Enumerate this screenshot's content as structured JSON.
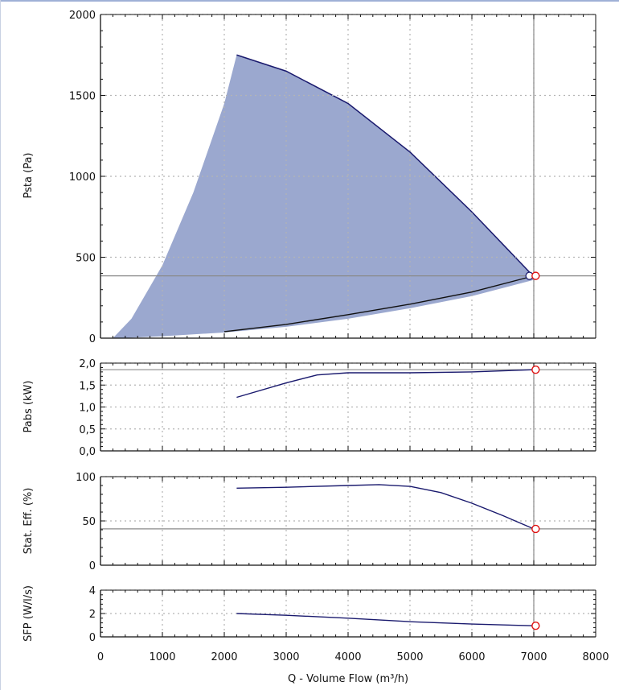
{
  "chart_data": {
    "type": "line",
    "shared_x": {
      "label": "Q - Volume Flow (m³/h)",
      "range": [
        0,
        8000
      ],
      "ticks": [
        0,
        1000,
        2000,
        3000,
        4000,
        5000,
        6000,
        7000,
        8000
      ],
      "tick_labels": [
        "0",
        "1000",
        "2000",
        "3000",
        "4000",
        "5000",
        "6000",
        "7000",
        "8000"
      ]
    },
    "operating_point": {
      "x": 7030,
      "x_line": 7000
    },
    "panels": [
      {
        "key": "psta",
        "ylabel": "Psta (Pa)",
        "ylim": [
          0,
          2000
        ],
        "yticks": [
          0,
          500,
          1000,
          1500,
          2000
        ],
        "ytick_labels": [
          "0",
          "500",
          "1000",
          "1500",
          "2000"
        ],
        "fill_color": "#9ba8cf",
        "range_upper": {
          "x": [
            200,
            500,
            1000,
            1500,
            2000,
            2200,
            3000,
            4000,
            5000,
            6000,
            7000
          ],
          "y": [
            0,
            120,
            450,
            900,
            1450,
            1750,
            1650,
            1450,
            1150,
            780,
            380
          ]
        },
        "range_lower": {
          "x": [
            7000,
            6000,
            5000,
            4000,
            3000,
            2000,
            1000,
            500,
            200
          ],
          "y": [
            360,
            260,
            185,
            120,
            70,
            35,
            12,
            3,
            0
          ]
        },
        "system_curve": {
          "x": [
            2000,
            3000,
            4000,
            5000,
            6000,
            6950
          ],
          "y": [
            40,
            85,
            145,
            210,
            285,
            380
          ]
        },
        "reference_y": 385,
        "marker": {
          "x": 7030,
          "y": 385
        },
        "marker_blue": {
          "x": 6930,
          "y": 385
        }
      },
      {
        "key": "pabs",
        "ylabel": "Pabs (kW)",
        "ylim": [
          0,
          2
        ],
        "yticks": [
          0,
          0.5,
          1,
          1.5,
          2
        ],
        "ytick_labels": [
          "0,0",
          "0,5",
          "1,0",
          "1,5",
          "2,0"
        ],
        "curve": {
          "x": [
            2200,
            3000,
            3500,
            4000,
            5000,
            6000,
            7000
          ],
          "y": [
            1.22,
            1.55,
            1.73,
            1.78,
            1.78,
            1.8,
            1.85
          ]
        },
        "reference_y": 1.85,
        "marker": {
          "x": 7030,
          "y": 1.85
        }
      },
      {
        "key": "eff",
        "ylabel": "Stat. Eff. (%)",
        "ylim": [
          0,
          100
        ],
        "yticks": [
          0,
          50,
          100
        ],
        "ytick_labels": [
          "0",
          "50",
          "100"
        ],
        "curve": {
          "x": [
            2200,
            3000,
            4000,
            4500,
            5000,
            5500,
            6000,
            6500,
            7000
          ],
          "y": [
            87,
            88,
            90,
            91,
            89,
            82,
            70,
            56,
            41
          ]
        },
        "reference_y": 41,
        "marker": {
          "x": 7030,
          "y": 41
        }
      },
      {
        "key": "sfp",
        "ylabel": "SFP (W/l/s)",
        "ylim": [
          0,
          4
        ],
        "yticks": [
          0,
          2,
          4
        ],
        "ytick_labels": [
          "0",
          "2",
          "4"
        ],
        "curve": {
          "x": [
            2200,
            3000,
            4000,
            5000,
            6000,
            7000
          ],
          "y": [
            2.0,
            1.85,
            1.6,
            1.3,
            1.1,
            0.95
          ]
        },
        "marker": {
          "x": 7030,
          "y": 0.95
        }
      }
    ],
    "grid": true,
    "colors": {
      "curve": "#1a1a6e",
      "marker": "#e01010",
      "reference": "#8a8a8a",
      "grid": "#b4b4b4",
      "axis": "#111111"
    }
  }
}
